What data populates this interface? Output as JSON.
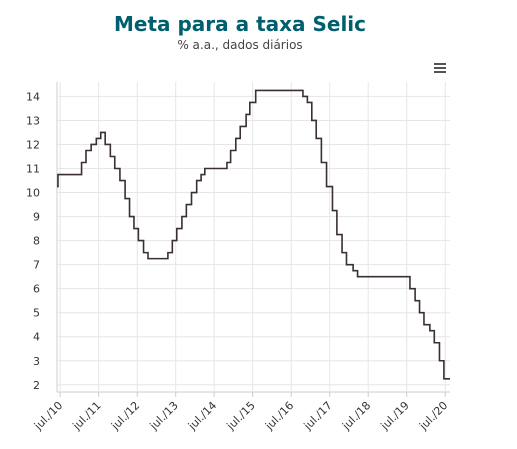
{
  "header": {
    "title": "Meta para a taxa Selic",
    "subtitle": "% a.a., dados diários"
  },
  "chart_data": {
    "type": "line",
    "title": "Meta para a taxa Selic",
    "subtitle": "% a.a., dados diários",
    "xlabel": "",
    "ylabel": "",
    "x_range": [
      "2010-06-01",
      "2020-08-15"
    ],
    "ylim": [
      1.7,
      14.6
    ],
    "y_ticks": [
      2,
      3,
      4,
      5,
      6,
      7,
      8,
      9,
      10,
      11,
      12,
      13,
      14
    ],
    "x_ticks": [
      {
        "date": "2010-07-01",
        "label": "jul./10"
      },
      {
        "date": "2011-07-01",
        "label": "jul./11"
      },
      {
        "date": "2012-07-01",
        "label": "jul./12"
      },
      {
        "date": "2013-07-01",
        "label": "jul./13"
      },
      {
        "date": "2014-07-01",
        "label": "jul./14"
      },
      {
        "date": "2015-07-01",
        "label": "jul./15"
      },
      {
        "date": "2016-07-01",
        "label": "jul./16"
      },
      {
        "date": "2017-07-01",
        "label": "jul./17"
      },
      {
        "date": "2018-07-01",
        "label": "jul./18"
      },
      {
        "date": "2019-07-01",
        "label": "jul./19"
      },
      {
        "date": "2020-07-01",
        "label": "jul./20"
      }
    ],
    "grid": true,
    "line_color": "#3a2f33",
    "series": [
      {
        "step": true,
        "points": [
          [
            "2010-06-01",
            10.25
          ],
          [
            "2010-06-10",
            10.75
          ],
          [
            "2011-01-20",
            11.25
          ],
          [
            "2011-03-03",
            11.75
          ],
          [
            "2011-04-21",
            12.0
          ],
          [
            "2011-06-09",
            12.25
          ],
          [
            "2011-07-21",
            12.5
          ],
          [
            "2011-09-01",
            12.0
          ],
          [
            "2011-10-20",
            11.5
          ],
          [
            "2011-12-01",
            11.0
          ],
          [
            "2012-01-19",
            10.5
          ],
          [
            "2012-03-08",
            9.75
          ],
          [
            "2012-04-19",
            9.0
          ],
          [
            "2012-05-31",
            8.5
          ],
          [
            "2012-07-12",
            8.0
          ],
          [
            "2012-08-30",
            7.5
          ],
          [
            "2012-10-11",
            7.25
          ],
          [
            "2013-04-18",
            7.5
          ],
          [
            "2013-05-30",
            8.0
          ],
          [
            "2013-07-11",
            8.5
          ],
          [
            "2013-08-29",
            9.0
          ],
          [
            "2013-10-10",
            9.5
          ],
          [
            "2013-11-28",
            10.0
          ],
          [
            "2014-01-16",
            10.5
          ],
          [
            "2014-02-27",
            10.75
          ],
          [
            "2014-04-03",
            11.0
          ],
          [
            "2014-10-30",
            11.25
          ],
          [
            "2014-12-04",
            11.75
          ],
          [
            "2015-01-22",
            12.25
          ],
          [
            "2015-03-05",
            12.75
          ],
          [
            "2015-04-30",
            13.25
          ],
          [
            "2015-06-04",
            13.75
          ],
          [
            "2015-07-30",
            14.25
          ],
          [
            "2016-10-20",
            14.0
          ],
          [
            "2016-12-01",
            13.75
          ],
          [
            "2017-01-12",
            13.0
          ],
          [
            "2017-02-23",
            12.25
          ],
          [
            "2017-04-13",
            11.25
          ],
          [
            "2017-06-01",
            10.25
          ],
          [
            "2017-07-27",
            9.25
          ],
          [
            "2017-09-07",
            8.25
          ],
          [
            "2017-10-26",
            7.5
          ],
          [
            "2017-12-07",
            7.0
          ],
          [
            "2018-02-08",
            6.75
          ],
          [
            "2018-03-22",
            6.5
          ],
          [
            "2019-08-01",
            6.0
          ],
          [
            "2019-09-19",
            5.5
          ],
          [
            "2019-10-31",
            5.0
          ],
          [
            "2019-12-12",
            4.5
          ],
          [
            "2020-02-06",
            4.25
          ],
          [
            "2020-03-19",
            3.75
          ],
          [
            "2020-05-07",
            3.0
          ],
          [
            "2020-06-18",
            2.25
          ],
          [
            "2020-08-15",
            2.25
          ]
        ]
      }
    ]
  }
}
